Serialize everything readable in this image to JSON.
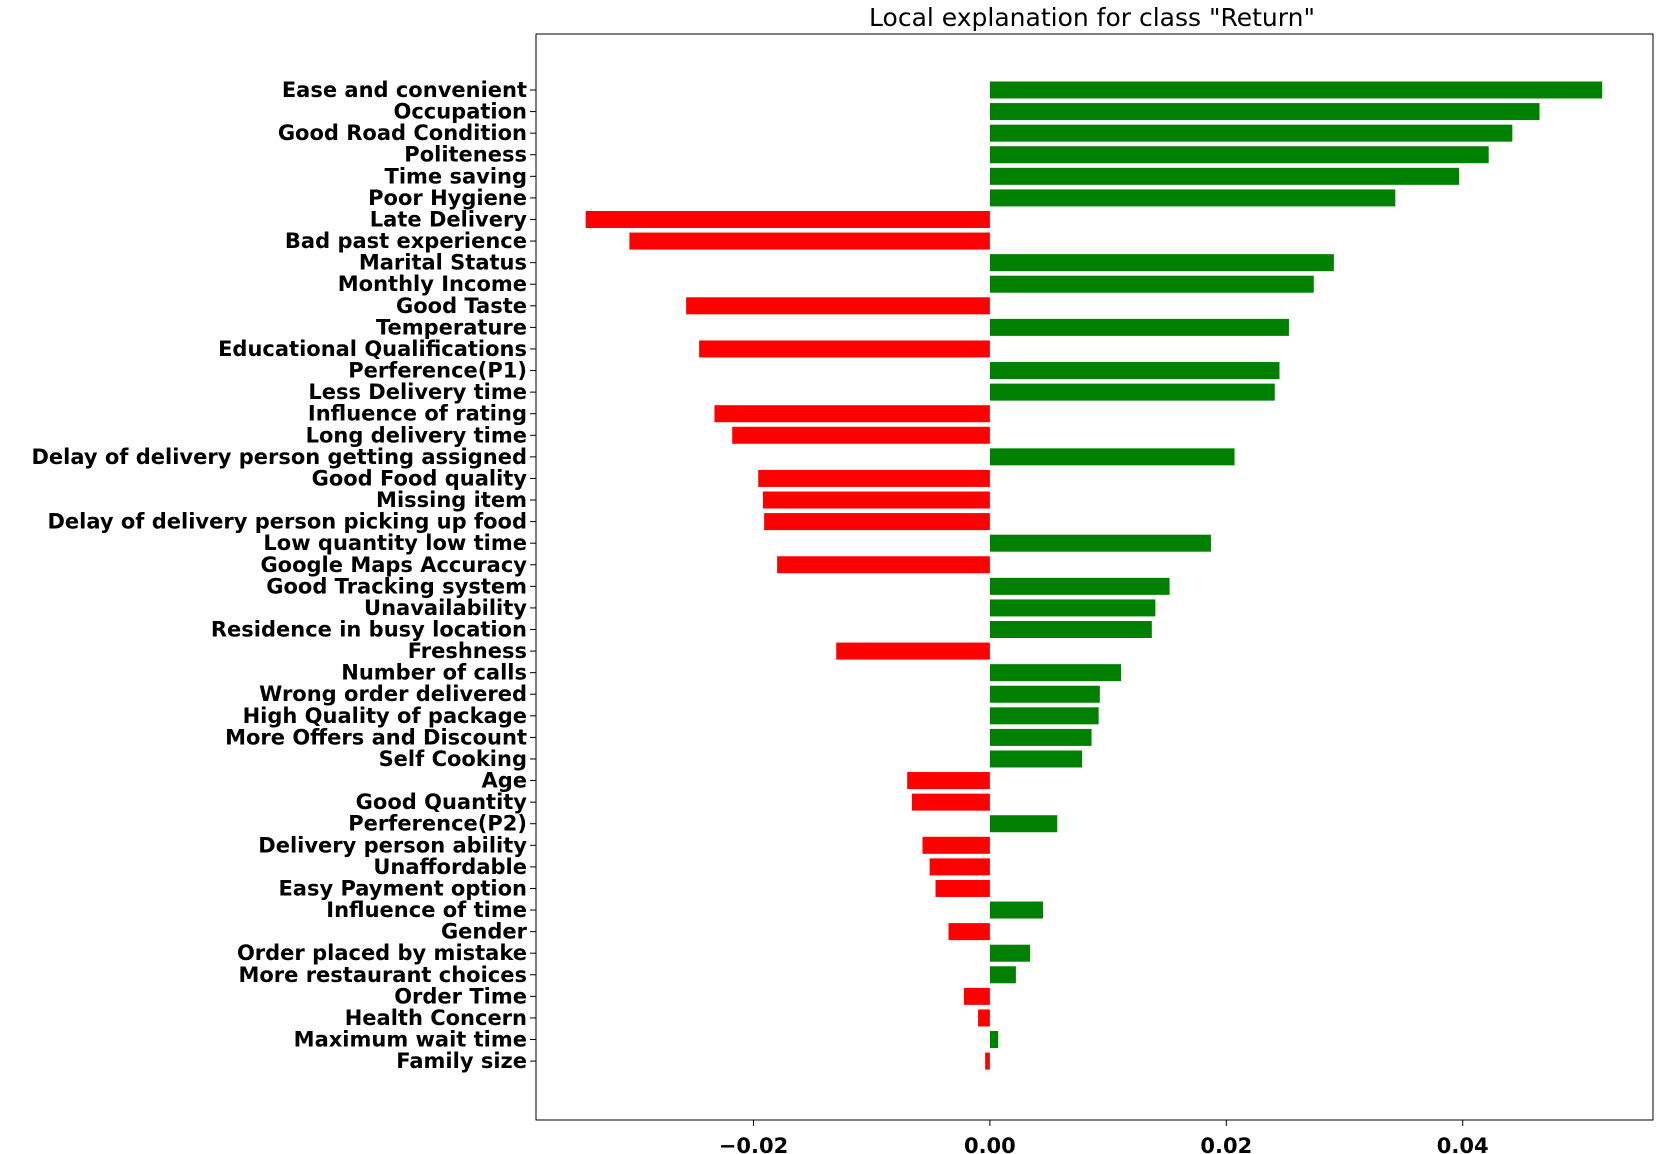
{
  "chart_data": {
    "type": "bar",
    "orientation": "horizontal",
    "title": "Local explanation for class \"Return\"",
    "xlabel": "",
    "ylabel": "",
    "xlim": [
      -0.0384,
      0.0561
    ],
    "xticks": [
      -0.02,
      0.0,
      0.02,
      0.04
    ],
    "xtick_labels": [
      "−0.02",
      "0.00",
      "0.02",
      "0.04"
    ],
    "grid": false,
    "colors": {
      "positive": "#008000",
      "negative": "#ff0000"
    },
    "categories": [
      "Ease and convenient",
      "Occupation",
      "Good Road Condition",
      "Politeness",
      "Time saving",
      "Poor Hygiene",
      "Late Delivery",
      "Bad past experience",
      "Marital Status",
      "Monthly Income",
      "Good Taste ",
      "Temperature",
      "Educational Qualifications",
      "Perference(P1)",
      "Less Delivery time",
      "Influence of rating",
      "Long delivery time",
      "Delay of delivery person getting assigned",
      "Good Food quality",
      "Missing item",
      "Delay of delivery person picking up food",
      "Low quantity low time",
      "Google Maps Accuracy",
      "Good Tracking system",
      "Unavailability",
      "Residence in busy location",
      "Freshness ",
      "Number of calls",
      "Wrong order delivered",
      "High Quality of package",
      "More Offers and Discount",
      "Self Cooking",
      "Age",
      "Good Quantity",
      "Perference(P2)",
      "Delivery person ability",
      "Unaffordable",
      "Easy Payment option",
      "Influence of time",
      "Gender",
      "Order placed by mistake",
      "More restaurant choices",
      "Order Time",
      "Health Concern",
      "Maximum wait time",
      "Family size"
    ],
    "values": [
      0.0518,
      0.0465,
      0.0442,
      0.0422,
      0.0397,
      0.0343,
      -0.0342,
      -0.0305,
      0.0291,
      0.0274,
      -0.0257,
      0.0253,
      -0.0246,
      0.0245,
      0.0241,
      -0.0233,
      -0.0218,
      0.0207,
      -0.0196,
      -0.0192,
      -0.0191,
      0.0187,
      -0.018,
      0.0152,
      0.014,
      0.0137,
      -0.013,
      0.0111,
      0.0093,
      0.0092,
      0.0086,
      0.0078,
      -0.007,
      -0.0066,
      0.0057,
      -0.0057,
      -0.0051,
      -0.0046,
      0.0045,
      -0.0035,
      0.0034,
      0.0022,
      -0.0022,
      -0.001,
      0.0007,
      -0.0004
    ]
  }
}
